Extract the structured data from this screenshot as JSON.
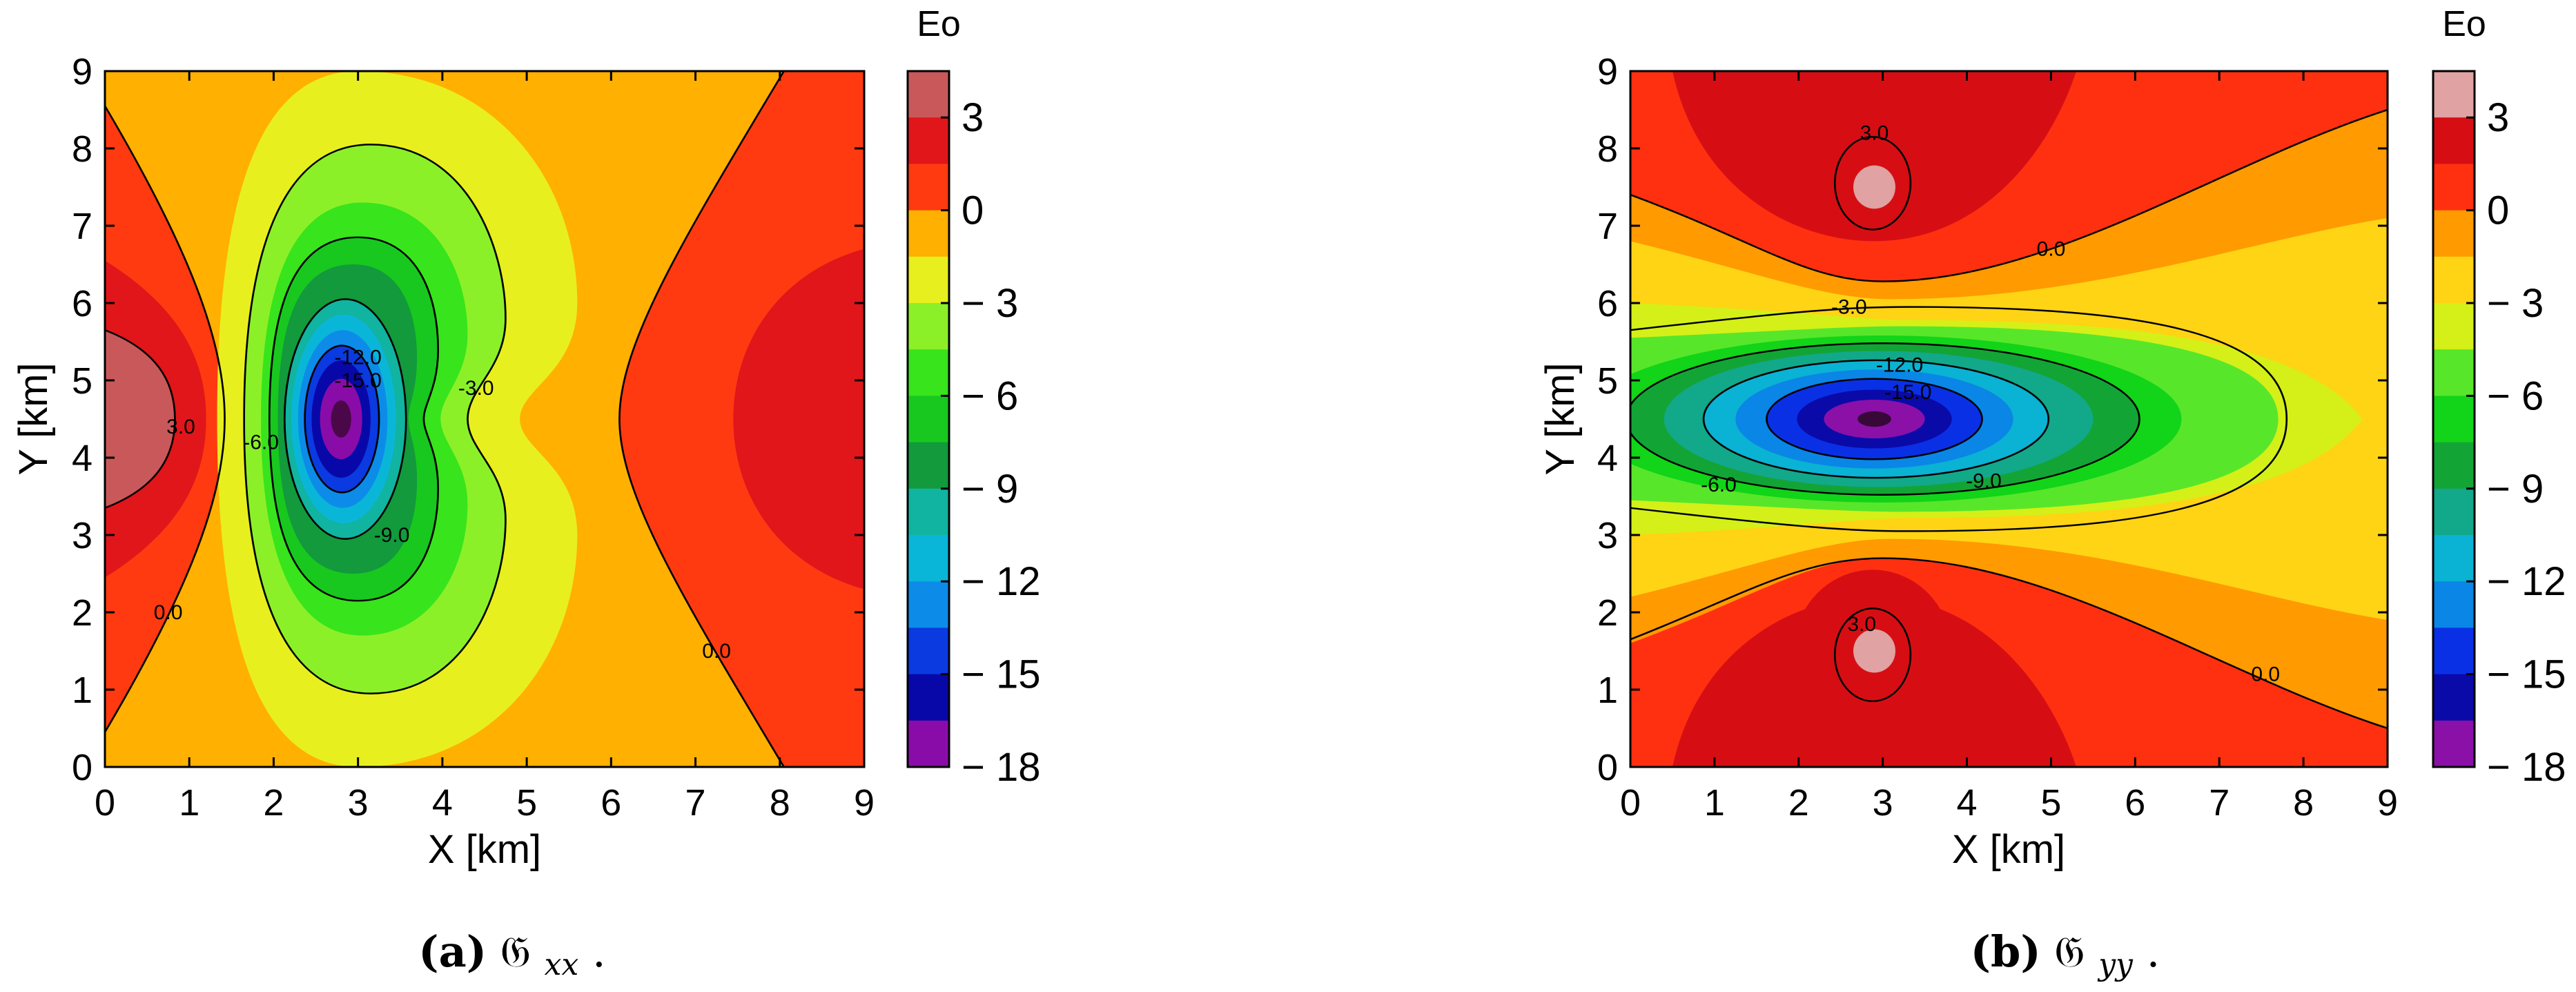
{
  "chart_data": [
    {
      "type": "heatmap",
      "caption_tag": "(a)",
      "caption_symbol": "𝔊",
      "caption_sub": "xx",
      "caption_end": ".",
      "xlabel": "X [km]",
      "ylabel": "Y [km]",
      "xlim": [
        0,
        9
      ],
      "ylim": [
        0,
        9
      ],
      "x_ticks": [
        "0",
        "1",
        "2",
        "3",
        "4",
        "5",
        "6",
        "7",
        "8",
        "9"
      ],
      "y_ticks": [
        "0",
        "1",
        "2",
        "3",
        "4",
        "5",
        "6",
        "7",
        "8",
        "9"
      ],
      "colorbar": {
        "title": "Eo",
        "range": [
          -18,
          4.5
        ],
        "ticks": [
          "3",
          "0",
          "− 3",
          "− 6",
          "− 9",
          "− 12",
          "− 15",
          "− 18"
        ],
        "tick_values": [
          3,
          0,
          -3,
          -6,
          -9,
          -12,
          -15,
          -18
        ],
        "level_step": 1.5,
        "levels_top_to_bottom": [
          {
            "range": [
              3,
              4.5
            ],
            "color": "#c9585a"
          },
          {
            "range": [
              1.5,
              3
            ],
            "color": "#e0161a"
          },
          {
            "range": [
              0,
              1.5
            ],
            "color": "#ff3a10"
          },
          {
            "range": [
              -1.5,
              0
            ],
            "color": "#ffb000"
          },
          {
            "range": [
              -3,
              -1.5
            ],
            "color": "#e8ef1e"
          },
          {
            "range": [
              -4.5,
              -3
            ],
            "color": "#8cf028"
          },
          {
            "range": [
              -6,
              -4.5
            ],
            "color": "#38e41c"
          },
          {
            "range": [
              -7.5,
              -6
            ],
            "color": "#18c81e"
          },
          {
            "range": [
              -9,
              -7.5
            ],
            "color": "#129a3c"
          },
          {
            "range": [
              -10.5,
              -9
            ],
            "color": "#10b4a0"
          },
          {
            "range": [
              -12,
              -10.5
            ],
            "color": "#0ab6d8"
          },
          {
            "range": [
              -13.5,
              -12
            ],
            "color": "#0c8ce8"
          },
          {
            "range": [
              -15,
              -13.5
            ],
            "color": "#0a3ae0"
          },
          {
            "range": [
              -16.5,
              -15
            ],
            "color": "#0808a8"
          },
          {
            "range": [
              -18,
              -16.5
            ],
            "color": "#8a0ca8"
          },
          {
            "range": [
              -19.5,
              -18
            ],
            "color": "#4a0848"
          }
        ]
      },
      "contour_labels": [
        "3.0",
        "0.0",
        "-3.0",
        "-6.0",
        "-9.0",
        "-12.0",
        "-15.0"
      ],
      "annotations": [
        {
          "text": "3.0",
          "x": 0.9,
          "y": 4.4
        },
        {
          "text": "0.0",
          "x": 0.75,
          "y": 2.0
        },
        {
          "text": "0.0",
          "x": 7.25,
          "y": 1.5
        },
        {
          "text": "-3.0",
          "x": 4.4,
          "y": 4.9
        },
        {
          "text": "-6.0",
          "x": 1.85,
          "y": 4.2
        },
        {
          "text": "-9.0",
          "x": 3.4,
          "y": 3.0
        },
        {
          "text": "-12.0",
          "x": 3.0,
          "y": 5.3
        },
        {
          "text": "-15.0",
          "x": 3.0,
          "y": 5.0
        }
      ]
    },
    {
      "type": "heatmap",
      "caption_tag": "(b)",
      "caption_symbol": "𝔊",
      "caption_sub": "yy",
      "caption_end": ".",
      "xlabel": "X [km]",
      "ylabel": "Y [km]",
      "xlim": [
        0,
        9
      ],
      "ylim": [
        0,
        9
      ],
      "x_ticks": [
        "0",
        "1",
        "2",
        "3",
        "4",
        "5",
        "6",
        "7",
        "8",
        "9"
      ],
      "y_ticks": [
        "0",
        "1",
        "2",
        "3",
        "4",
        "5",
        "6",
        "7",
        "8",
        "9"
      ],
      "colorbar": {
        "title": "Eo",
        "range": [
          -18,
          4.5
        ],
        "ticks": [
          "3",
          "0",
          "− 3",
          "− 6",
          "− 9",
          "− 12",
          "− 15",
          "− 18"
        ],
        "tick_values": [
          3,
          0,
          -3,
          -6,
          -9,
          -12,
          -15,
          -18
        ],
        "level_step": 1.5,
        "levels_top_to_bottom": [
          {
            "range": [
              3,
              4.5
            ],
            "color": "#e0a2a2"
          },
          {
            "range": [
              1.5,
              3
            ],
            "color": "#d60e14"
          },
          {
            "range": [
              0,
              1.5
            ],
            "color": "#ff3010"
          },
          {
            "range": [
              -1.5,
              0
            ],
            "color": "#ff9a00"
          },
          {
            "range": [
              -3,
              -1.5
            ],
            "color": "#ffd414"
          },
          {
            "range": [
              -4.5,
              -3
            ],
            "color": "#d4f018"
          },
          {
            "range": [
              -6,
              -4.5
            ],
            "color": "#58e62a"
          },
          {
            "range": [
              -7.5,
              -6
            ],
            "color": "#12d418"
          },
          {
            "range": [
              -9,
              -7.5
            ],
            "color": "#13a436"
          },
          {
            "range": [
              -10.5,
              -9
            ],
            "color": "#12a88a"
          },
          {
            "range": [
              -12,
              -10.5
            ],
            "color": "#0ab2d4"
          },
          {
            "range": [
              -13.5,
              -12
            ],
            "color": "#0a86e6"
          },
          {
            "range": [
              -15,
              -13.5
            ],
            "color": "#0a30e6"
          },
          {
            "range": [
              -16.5,
              -15
            ],
            "color": "#0a0aa8"
          },
          {
            "range": [
              -18,
              -16.5
            ],
            "color": "#8a10a8"
          },
          {
            "range": [
              -19.5,
              -18
            ],
            "color": "#380838"
          }
        ]
      },
      "contour_labels": [
        "3.0",
        "0.0",
        "-3.0",
        "-6.0",
        "-9.0",
        "-12.0",
        "-15.0"
      ],
      "annotations": [
        {
          "text": "3.0",
          "x": 2.9,
          "y": 8.2
        },
        {
          "text": "3.0",
          "x": 2.75,
          "y": 1.85
        },
        {
          "text": "0.0",
          "x": 5.0,
          "y": 6.7
        },
        {
          "text": "0.0",
          "x": 7.55,
          "y": 1.2
        },
        {
          "text": "-3.0",
          "x": 2.6,
          "y": 5.95
        },
        {
          "text": "-6.0",
          "x": 1.05,
          "y": 3.65
        },
        {
          "text": "-9.0",
          "x": 4.2,
          "y": 3.7
        },
        {
          "text": "-12.0",
          "x": 3.2,
          "y": 5.2
        },
        {
          "text": "-15.0",
          "x": 3.3,
          "y": 4.85
        }
      ]
    }
  ]
}
